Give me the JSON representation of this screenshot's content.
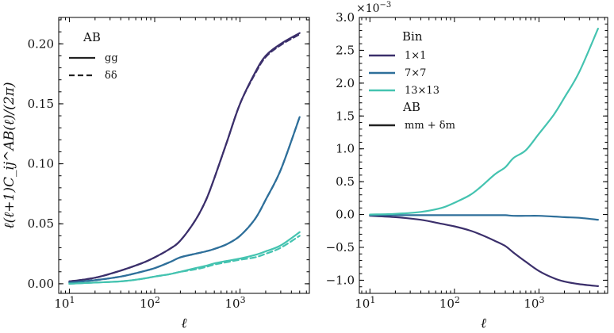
{
  "chart_data": [
    {
      "type": "line",
      "xscale": "log",
      "xlim": [
        7.5,
        6500
      ],
      "ylim": [
        -0.008,
        0.222
      ],
      "xlabel": "ℓ",
      "ylabel": "ℓ(ℓ+1)C_ij^AB(ℓ)/(2π)",
      "xticks": [
        {
          "v": 10,
          "b": "10",
          "e": "1"
        },
        {
          "v": 100,
          "b": "10",
          "e": "2"
        },
        {
          "v": 1000,
          "b": "10",
          "e": "3"
        }
      ],
      "yticks": [
        {
          "v": 0.0,
          "label": "0.00"
        },
        {
          "v": 0.05,
          "label": "0.05"
        },
        {
          "v": 0.1,
          "label": "0.10"
        },
        {
          "v": 0.15,
          "label": "0.15"
        },
        {
          "v": 0.2,
          "label": "0.20"
        }
      ],
      "legend": {
        "position": "top-left",
        "title": "AB",
        "entries": [
          {
            "label": "gg",
            "style": "solid"
          },
          {
            "label": "δδ",
            "style": "dashed"
          }
        ]
      },
      "series": [
        {
          "name": "1×1 gg",
          "color": "#3b2f6b",
          "style": "solid",
          "x": [
            10,
            20,
            40,
            70,
            100,
            150,
            200,
            300,
            400,
            500,
            700,
            1000,
            1500,
            2000,
            3000,
            5000
          ],
          "y": [
            0.002,
            0.005,
            0.011,
            0.017,
            0.022,
            0.029,
            0.036,
            0.053,
            0.07,
            0.088,
            0.118,
            0.15,
            0.176,
            0.19,
            0.2,
            0.209
          ]
        },
        {
          "name": "1×1 δδ",
          "color": "#3b2f6b",
          "style": "dashed",
          "x": [
            10,
            20,
            40,
            70,
            100,
            150,
            200,
            300,
            400,
            500,
            700,
            1000,
            1500,
            2000,
            3000,
            5000
          ],
          "y": [
            0.002,
            0.005,
            0.011,
            0.017,
            0.022,
            0.029,
            0.036,
            0.053,
            0.07,
            0.088,
            0.118,
            0.15,
            0.175,
            0.189,
            0.199,
            0.208
          ]
        },
        {
          "name": "7×7 gg",
          "color": "#2e6f9a",
          "style": "solid",
          "x": [
            10,
            20,
            40,
            70,
            100,
            150,
            200,
            300,
            400,
            500,
            700,
            1000,
            1500,
            2000,
            3000,
            5000
          ],
          "y": [
            0.001,
            0.003,
            0.006,
            0.01,
            0.013,
            0.018,
            0.022,
            0.025,
            0.027,
            0.029,
            0.033,
            0.04,
            0.054,
            0.07,
            0.095,
            0.139
          ]
        },
        {
          "name": "7×7 δδ",
          "color": "#2e6f9a",
          "style": "dashed",
          "x": [
            10,
            20,
            40,
            70,
            100,
            150,
            200,
            300,
            400,
            500,
            700,
            1000,
            1500,
            2000,
            3000,
            5000
          ],
          "y": [
            0.001,
            0.003,
            0.006,
            0.01,
            0.013,
            0.018,
            0.022,
            0.025,
            0.027,
            0.029,
            0.033,
            0.04,
            0.054,
            0.07,
            0.095,
            0.139
          ]
        },
        {
          "name": "13×13 gg",
          "color": "#44c3b0",
          "style": "solid",
          "x": [
            10,
            20,
            40,
            70,
            100,
            150,
            200,
            300,
            400,
            500,
            700,
            1000,
            1500,
            2000,
            3000,
            5000
          ],
          "y": [
            0.0,
            0.001,
            0.002,
            0.004,
            0.006,
            0.008,
            0.01,
            0.013,
            0.015,
            0.017,
            0.019,
            0.021,
            0.024,
            0.027,
            0.032,
            0.043
          ]
        },
        {
          "name": "13×13 δδ",
          "color": "#44c3b0",
          "style": "dashed",
          "x": [
            10,
            20,
            40,
            70,
            100,
            150,
            200,
            300,
            400,
            500,
            700,
            1000,
            1500,
            2000,
            3000,
            5000
          ],
          "y": [
            0.0,
            0.001,
            0.002,
            0.004,
            0.006,
            0.008,
            0.01,
            0.012,
            0.014,
            0.016,
            0.018,
            0.02,
            0.022,
            0.025,
            0.03,
            0.04
          ]
        }
      ]
    },
    {
      "type": "line",
      "xscale": "log",
      "xlim": [
        7.5,
        6500
      ],
      "ylim": [
        -1.2,
        3.0
      ],
      "xlabel": "ℓ",
      "ylabel": "",
      "y_scale_label": {
        "base": "×10",
        "exp": "−3"
      },
      "xticks": [
        {
          "v": 10,
          "b": "10",
          "e": "1"
        },
        {
          "v": 100,
          "b": "10",
          "e": "2"
        },
        {
          "v": 1000,
          "b": "10",
          "e": "3"
        }
      ],
      "yticks": [
        {
          "v": -1.0,
          "label": "−1.0"
        },
        {
          "v": -0.5,
          "label": "−0.5"
        },
        {
          "v": 0.0,
          "label": "0.0"
        },
        {
          "v": 0.5,
          "label": "0.5"
        },
        {
          "v": 1.0,
          "label": "1.0"
        },
        {
          "v": 1.5,
          "label": "1.5"
        },
        {
          "v": 2.0,
          "label": "2.0"
        },
        {
          "v": 2.5,
          "label": "2.5"
        },
        {
          "v": 3.0,
          "label": "3.0"
        }
      ],
      "legend": {
        "position": "top-left",
        "title": "Bin",
        "entries": [
          {
            "label": "1×1",
            "color": "#3b2f6b"
          },
          {
            "label": "7×7",
            "color": "#2e6f9a"
          },
          {
            "label": "13×13",
            "color": "#44c3b0"
          }
        ],
        "title2": "AB",
        "entries2": [
          {
            "label": "mm + δm",
            "color": "#222222"
          }
        ]
      },
      "series": [
        {
          "name": "1×1",
          "color": "#3b2f6b",
          "style": "solid",
          "x": [
            10,
            20,
            40,
            70,
            100,
            150,
            200,
            300,
            400,
            500,
            700,
            1000,
            1500,
            2000,
            3000,
            5000
          ],
          "y": [
            -0.02,
            -0.04,
            -0.08,
            -0.14,
            -0.18,
            -0.24,
            -0.3,
            -0.4,
            -0.48,
            -0.58,
            -0.72,
            -0.86,
            -0.97,
            -1.02,
            -1.06,
            -1.09
          ]
        },
        {
          "name": "7×7",
          "color": "#2e6f9a",
          "style": "solid",
          "x": [
            10,
            20,
            40,
            70,
            100,
            150,
            200,
            300,
            400,
            500,
            700,
            1000,
            1500,
            2000,
            3000,
            5000
          ],
          "y": [
            -0.01,
            -0.01,
            -0.01,
            -0.01,
            -0.01,
            -0.01,
            -0.01,
            -0.01,
            -0.01,
            -0.02,
            -0.02,
            -0.02,
            -0.03,
            -0.04,
            -0.05,
            -0.08
          ]
        },
        {
          "name": "13×13",
          "color": "#44c3b0",
          "style": "solid",
          "x": [
            10,
            20,
            40,
            70,
            100,
            150,
            200,
            300,
            400,
            500,
            700,
            1000,
            1500,
            2000,
            3000,
            5000
          ],
          "y": [
            0.0,
            0.01,
            0.04,
            0.1,
            0.18,
            0.29,
            0.41,
            0.61,
            0.72,
            0.86,
            0.98,
            1.23,
            1.52,
            1.78,
            2.17,
            2.83
          ]
        }
      ]
    }
  ]
}
